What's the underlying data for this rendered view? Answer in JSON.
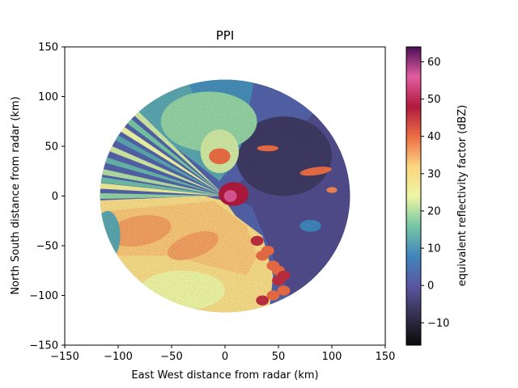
{
  "chart_data": {
    "type": "heatmap",
    "title": "PPI",
    "xlabel": "East West distance from radar (km)",
    "ylabel": "North South distance from radar (km)",
    "xlim": [
      -150,
      150
    ],
    "ylim": [
      -150,
      150
    ],
    "xticks": [
      -150,
      -100,
      -50,
      0,
      50,
      100,
      150
    ],
    "yticks": [
      -150,
      -100,
      -50,
      0,
      50,
      100,
      150
    ],
    "xtick_labels": [
      "−150",
      "−100",
      "−50",
      "0",
      "50",
      "100",
      "150"
    ],
    "ytick_labels": [
      "−150",
      "−100",
      "−50",
      "0",
      "50",
      "100",
      "150"
    ],
    "max_range_km": 117,
    "colorbar": {
      "label": "equivalent reflectivity factor (dBZ)",
      "min": -16,
      "max": 64,
      "ticks": [
        -10,
        0,
        10,
        20,
        30,
        40,
        50,
        60
      ],
      "tick_labels": [
        "−10",
        "0",
        "10",
        "20",
        "30",
        "40",
        "50",
        "60"
      ],
      "colormap_stops": [
        {
          "value": -16,
          "color": "#0a0a0a"
        },
        {
          "value": -8,
          "color": "#35304f"
        },
        {
          "value": 0,
          "color": "#5a57a2"
        },
        {
          "value": 8,
          "color": "#3f86bc"
        },
        {
          "value": 16,
          "color": "#76c7a4"
        },
        {
          "value": 24,
          "color": "#eef6a4"
        },
        {
          "value": 32,
          "color": "#fbd47f"
        },
        {
          "value": 40,
          "color": "#ec6d45"
        },
        {
          "value": 48,
          "color": "#b01a3e"
        },
        {
          "value": 56,
          "color": "#e25ea1"
        },
        {
          "value": 64,
          "color": "#4c0f55"
        }
      ]
    },
    "regions": [
      {
        "name": "southwest stratiform precipitation",
        "dbz_range": [
          25,
          35
        ]
      },
      {
        "name": "northwest clear-air beams",
        "dbz_range": [
          8,
          25
        ]
      },
      {
        "name": "east weak echo",
        "dbz_range": [
          -5,
          5
        ]
      },
      {
        "name": "convective line south-east",
        "dbz_range": [
          35,
          50
        ]
      },
      {
        "name": "near-radar core",
        "dbz_range": [
          45,
          60
        ]
      },
      {
        "name": "east convective cells",
        "dbz_range": [
          35,
          45
        ]
      }
    ]
  }
}
